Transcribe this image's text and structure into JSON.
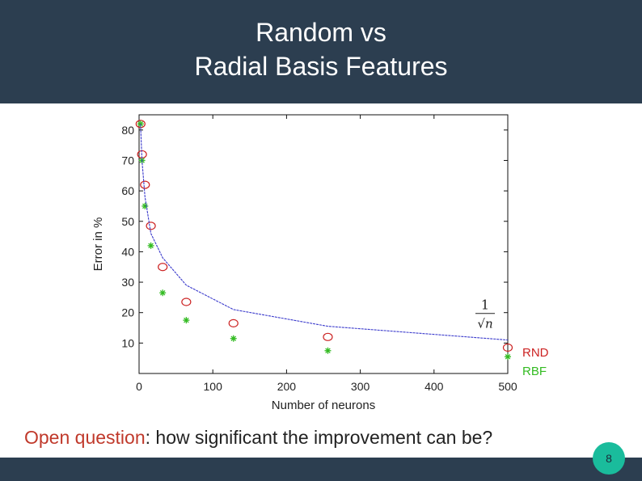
{
  "slide": {
    "title_line1": "Random vs",
    "title_line2": "Radial Basis Features",
    "question_highlight": "Open question",
    "question_rest": ": how significant the improvement can be?",
    "page_number": "8"
  },
  "colors": {
    "header_bg": "#2c3e50",
    "badge": "#1abc9c",
    "rnd": "#cc2222",
    "rbf": "#33bb22",
    "curve": "#3a3acc"
  },
  "chart_data": {
    "type": "scatter",
    "xlabel": "Number of neurons",
    "ylabel": "Error in %",
    "xlim": [
      0,
      500
    ],
    "ylim": [
      0,
      85
    ],
    "xticks": [
      0,
      100,
      200,
      300,
      400,
      500
    ],
    "yticks": [
      10,
      20,
      30,
      40,
      50,
      60,
      70,
      80
    ],
    "annotation": "1/√n",
    "series": [
      {
        "name": "RND",
        "marker": "circle",
        "color": "#cc2222",
        "points": [
          [
            2,
            82
          ],
          [
            4,
            72
          ],
          [
            8,
            62
          ],
          [
            16,
            48.5
          ],
          [
            32,
            35
          ],
          [
            64,
            23.5
          ],
          [
            128,
            16.5
          ],
          [
            256,
            12
          ],
          [
            500,
            8.5
          ]
        ]
      },
      {
        "name": "RBF",
        "marker": "star",
        "color": "#33bb22",
        "points": [
          [
            2,
            82
          ],
          [
            4,
            70
          ],
          [
            8,
            55
          ],
          [
            16,
            42
          ],
          [
            32,
            26.5
          ],
          [
            64,
            17.5
          ],
          [
            128,
            11.5
          ],
          [
            256,
            7.5
          ],
          [
            500,
            5.5
          ]
        ]
      },
      {
        "name": "",
        "marker": "line",
        "color": "#3a3acc",
        "points": [
          [
            2,
            82
          ],
          [
            4,
            70
          ],
          [
            8,
            58
          ],
          [
            16,
            46
          ],
          [
            32,
            38
          ],
          [
            64,
            29
          ],
          [
            128,
            21
          ],
          [
            256,
            15.5
          ],
          [
            500,
            11
          ]
        ]
      }
    ],
    "legend": [
      "RND",
      "RBF"
    ],
    "legend_position": "bottom-right"
  }
}
